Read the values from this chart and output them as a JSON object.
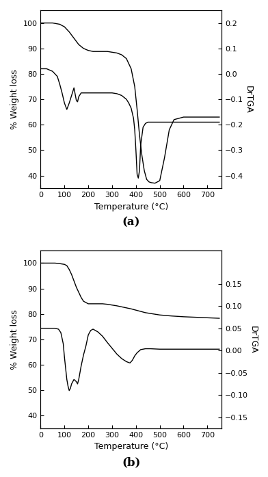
{
  "panel_a": {
    "tga_x": [
      0,
      25,
      50,
      80,
      100,
      120,
      140,
      160,
      180,
      200,
      220,
      240,
      260,
      280,
      300,
      320,
      340,
      360,
      380,
      395,
      405,
      415,
      425,
      435,
      445,
      455,
      465,
      480,
      500,
      520,
      540,
      560,
      600,
      650,
      750
    ],
    "tga_y": [
      100,
      100,
      100,
      99.5,
      98.5,
      96.5,
      94,
      91.5,
      90,
      89.2,
      88.8,
      88.8,
      88.8,
      88.8,
      88.5,
      88.2,
      87.5,
      86,
      82,
      75,
      66,
      56,
      48,
      42,
      38.5,
      37.5,
      37.2,
      37.0,
      38,
      47,
      58,
      62,
      63,
      63,
      63
    ],
    "dtg_x": [
      0,
      25,
      50,
      70,
      80,
      90,
      100,
      110,
      120,
      130,
      140,
      150,
      155,
      160,
      170,
      180,
      200,
      220,
      240,
      260,
      280,
      300,
      320,
      340,
      360,
      370,
      380,
      390,
      395,
      400,
      405,
      410,
      415,
      420,
      430,
      440,
      450,
      460,
      480,
      500,
      520,
      540,
      560,
      600,
      650,
      750
    ],
    "dtg_y": [
      0.02,
      0.02,
      0.01,
      -0.01,
      -0.04,
      -0.075,
      -0.115,
      -0.14,
      -0.115,
      -0.085,
      -0.055,
      -0.105,
      -0.11,
      -0.09,
      -0.075,
      -0.075,
      -0.075,
      -0.075,
      -0.075,
      -0.075,
      -0.075,
      -0.075,
      -0.078,
      -0.085,
      -0.1,
      -0.115,
      -0.135,
      -0.175,
      -0.22,
      -0.3,
      -0.395,
      -0.41,
      -0.38,
      -0.28,
      -0.21,
      -0.195,
      -0.19,
      -0.19,
      -0.19,
      -0.19,
      -0.19,
      -0.19,
      -0.19,
      -0.19,
      -0.19,
      -0.19
    ],
    "tga_ylim": [
      35,
      105
    ],
    "tga_yticks": [
      40,
      50,
      60,
      70,
      80,
      90,
      100
    ],
    "dtg_ylim": [
      -0.45,
      0.25
    ],
    "dtg_yticks": [
      -0.4,
      -0.3,
      -0.2,
      -0.1,
      0.0,
      0.1,
      0.2
    ],
    "xlabel": "Temperature (°C)",
    "ylabel_left": "% Weight loss",
    "ylabel_right": "DrTGA",
    "xlim": [
      0,
      760
    ],
    "xticks": [
      0,
      100,
      200,
      300,
      400,
      500,
      600,
      700
    ],
    "label": "(a)"
  },
  "panel_b": {
    "tga_x": [
      0,
      30,
      60,
      80,
      100,
      110,
      120,
      130,
      140,
      150,
      160,
      170,
      180,
      200,
      220,
      240,
      260,
      280,
      300,
      320,
      340,
      360,
      380,
      400,
      420,
      440,
      460,
      500,
      550,
      600,
      650,
      700,
      750
    ],
    "tga_y": [
      100,
      100,
      100,
      99.8,
      99.5,
      99,
      97.5,
      95.5,
      93,
      90.5,
      88.5,
      86.5,
      85.0,
      84.0,
      84.0,
      84.0,
      84.0,
      83.8,
      83.5,
      83.2,
      82.8,
      82.4,
      82.0,
      81.5,
      81.0,
      80.5,
      80.2,
      79.6,
      79.2,
      78.9,
      78.7,
      78.5,
      78.3
    ],
    "dtg_x": [
      0,
      30,
      60,
      75,
      85,
      95,
      100,
      105,
      110,
      115,
      120,
      125,
      130,
      140,
      150,
      155,
      160,
      165,
      170,
      180,
      190,
      200,
      210,
      220,
      240,
      260,
      280,
      300,
      320,
      340,
      360,
      375,
      385,
      395,
      405,
      420,
      440,
      460,
      500,
      550,
      600,
      650,
      700,
      750
    ],
    "dtg_y": [
      0.05,
      0.05,
      0.05,
      0.048,
      0.04,
      0.015,
      -0.015,
      -0.04,
      -0.065,
      -0.08,
      -0.09,
      -0.085,
      -0.075,
      -0.065,
      -0.07,
      -0.075,
      -0.065,
      -0.05,
      -0.035,
      -0.01,
      0.01,
      0.035,
      0.045,
      0.048,
      0.042,
      0.032,
      0.018,
      0.005,
      -0.008,
      -0.018,
      -0.025,
      -0.028,
      -0.022,
      -0.012,
      -0.005,
      0.002,
      0.004,
      0.004,
      0.003,
      0.003,
      0.003,
      0.003,
      0.003,
      0.003
    ],
    "tga_ylim": [
      35,
      105
    ],
    "tga_yticks": [
      40,
      50,
      60,
      70,
      80,
      90,
      100
    ],
    "dtg_ylim": [
      -0.175,
      0.225
    ],
    "dtg_yticks": [
      -0.15,
      -0.1,
      -0.05,
      0.0,
      0.05,
      0.1,
      0.15
    ],
    "xlabel": "Temperature (°C)",
    "ylabel_left": "% Weight loss",
    "ylabel_right": "DrTGA",
    "xlim": [
      0,
      760
    ],
    "xticks": [
      0,
      100,
      200,
      300,
      400,
      500,
      600,
      700
    ],
    "label": "(b)"
  },
  "line_color": "#000000",
  "line_width": 1.0,
  "font_size": 9,
  "label_font_size": 12,
  "tick_font_size": 8,
  "background_color": "#ffffff"
}
